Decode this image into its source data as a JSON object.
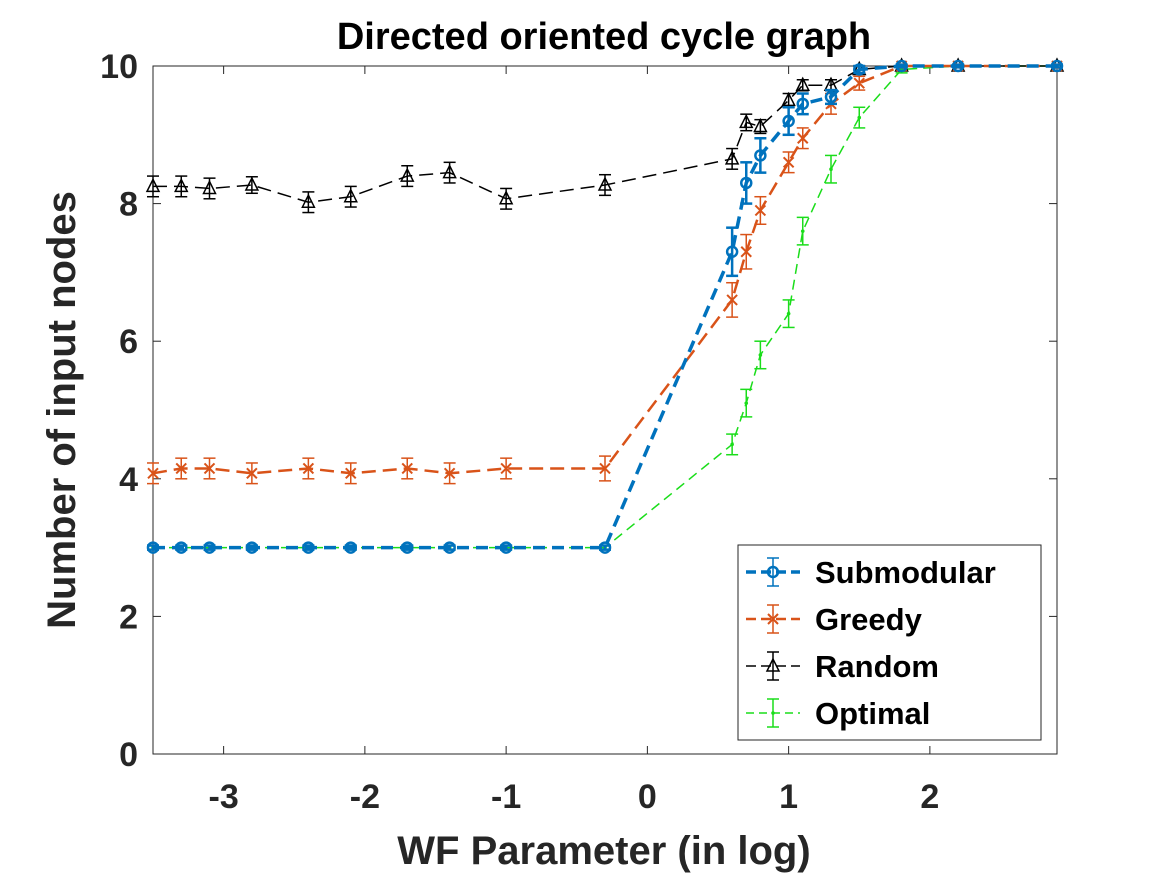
{
  "chart_data": {
    "type": "line",
    "title": "Directed oriented cycle graph",
    "xlabel": "WF Parameter (in log)",
    "ylabel": "Number of input nodes",
    "xlim": [
      -3.5,
      2.9
    ],
    "ylim": [
      0,
      10
    ],
    "xticks": [
      -3,
      -2,
      -1,
      0,
      1,
      2
    ],
    "yticks": [
      0,
      2,
      4,
      6,
      8,
      10
    ],
    "legend_position": "bottom-right",
    "x": [
      -3.5,
      -3.3,
      -3.1,
      -2.8,
      -2.4,
      -2.1,
      -1.7,
      -1.4,
      -1.0,
      -0.3,
      0.6,
      0.7,
      0.8,
      1.0,
      1.1,
      1.3,
      1.5,
      1.8,
      2.2,
      2.9
    ],
    "series": [
      {
        "name": "Submodular",
        "color": "#0072BD",
        "marker": "circle",
        "values": [
          3.0,
          3.0,
          3.0,
          3.0,
          3.0,
          3.0,
          3.0,
          3.0,
          3.0,
          3.0,
          7.3,
          8.3,
          8.7,
          9.2,
          9.45,
          9.55,
          9.95,
          10.0,
          10.0,
          10.0
        ],
        "errors": [
          0.03,
          0.03,
          0.03,
          0.03,
          0.03,
          0.03,
          0.03,
          0.03,
          0.03,
          0.03,
          0.35,
          0.3,
          0.25,
          0.2,
          0.15,
          0.1,
          0.05,
          0.02,
          0.02,
          0.02
        ]
      },
      {
        "name": "Greedy",
        "color": "#D95319",
        "marker": "x",
        "values": [
          4.08,
          4.15,
          4.15,
          4.08,
          4.15,
          4.08,
          4.15,
          4.08,
          4.15,
          4.15,
          6.6,
          7.3,
          7.9,
          8.6,
          8.95,
          9.45,
          9.75,
          10.0,
          10.0,
          10.0
        ],
        "errors": [
          0.15,
          0.15,
          0.15,
          0.15,
          0.15,
          0.15,
          0.15,
          0.15,
          0.15,
          0.18,
          0.25,
          0.25,
          0.2,
          0.15,
          0.15,
          0.15,
          0.1,
          0.02,
          0.02,
          0.02
        ]
      },
      {
        "name": "Random",
        "color": "#000000",
        "marker": "triangle",
        "values": [
          8.25,
          8.25,
          8.22,
          8.27,
          8.02,
          8.1,
          8.4,
          8.45,
          8.07,
          8.27,
          8.65,
          9.18,
          9.12,
          9.5,
          9.72,
          9.72,
          9.95,
          10.0,
          10.0,
          10.0
        ],
        "errors": [
          0.15,
          0.15,
          0.15,
          0.12,
          0.15,
          0.15,
          0.15,
          0.15,
          0.15,
          0.15,
          0.15,
          0.12,
          0.1,
          0.1,
          0.08,
          0.08,
          0.05,
          0.02,
          0.02,
          0.02
        ]
      },
      {
        "name": "Optimal",
        "color": "#1ADD1A",
        "marker": "dot",
        "values": [
          3.0,
          3.0,
          3.0,
          3.0,
          3.0,
          3.0,
          3.0,
          3.0,
          3.0,
          3.0,
          4.5,
          5.1,
          5.8,
          6.4,
          7.6,
          8.5,
          9.25,
          9.95,
          10.0,
          10.0
        ],
        "errors": [
          0.03,
          0.03,
          0.03,
          0.03,
          0.03,
          0.03,
          0.03,
          0.03,
          0.03,
          0.03,
          0.15,
          0.2,
          0.2,
          0.2,
          0.2,
          0.2,
          0.15,
          0.05,
          0.02,
          0.02
        ]
      }
    ]
  }
}
